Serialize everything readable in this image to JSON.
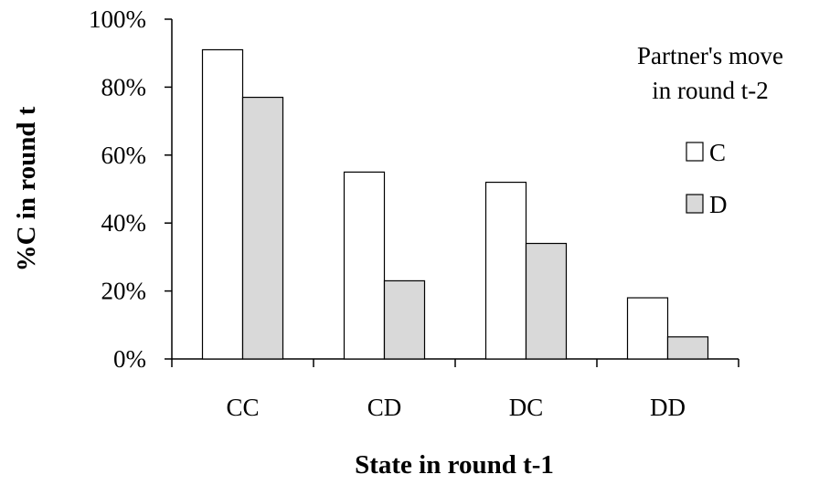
{
  "chart_data": {
    "type": "bar",
    "categories": [
      "CC",
      "CD",
      "DC",
      "DD"
    ],
    "series": [
      {
        "name": "C",
        "values": [
          91,
          55,
          52,
          18
        ],
        "color": "#ffffff"
      },
      {
        "name": "D",
        "values": [
          77,
          23,
          34,
          6.5
        ],
        "color": "#d9d9d9"
      }
    ],
    "xlabel": "State in round t-1",
    "ylabel": "%C in round t",
    "ylim": [
      0,
      100
    ],
    "yticks": [
      0,
      20,
      40,
      60,
      80,
      100
    ],
    "ytick_labels": [
      "0%",
      "20%",
      "40%",
      "60%",
      "80%",
      "100%"
    ],
    "legend": {
      "title_lines": [
        "Partner's move",
        "in round t-2"
      ],
      "placement": "right"
    },
    "grid": false
  }
}
